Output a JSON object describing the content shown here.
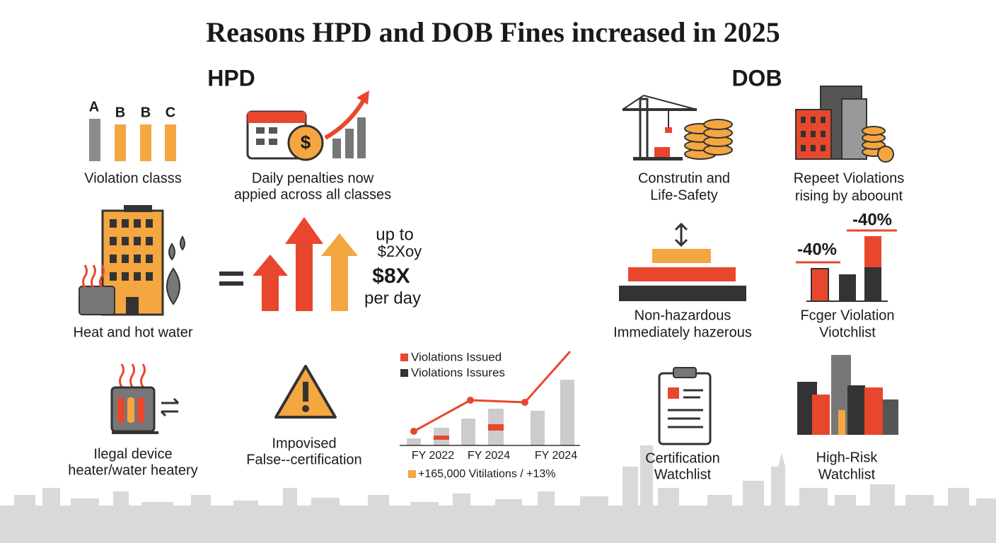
{
  "title": "Reasons HPD and DOB Fines increased in 2025",
  "hpd": {
    "heading": "HPD",
    "violation_class": {
      "letters": [
        "A",
        "B",
        "B",
        "C"
      ],
      "label": "Violation classs"
    },
    "daily_penalties": {
      "lines": [
        "Daily penalties now",
        "appied across all classes"
      ]
    },
    "heat": {
      "label": "Heat and hot water"
    },
    "multiplier": {
      "lines": [
        "up to",
        "$2Xoy",
        "$8X",
        "per day"
      ]
    },
    "illegal_device": {
      "lines": [
        "Ilegal device",
        "heater/water heatery"
      ]
    },
    "false_certification": {
      "lines": [
        "Impovised",
        "False--certification"
      ]
    },
    "trend": {
      "legend": [
        "Violations Issued",
        "Violations Issures"
      ],
      "x_labels": [
        "FY 2022",
        "FY 2024",
        "FY 2024"
      ],
      "footnote": "+165,000 Vitilations / +13%"
    }
  },
  "dob": {
    "heading": "DOB",
    "construction": {
      "lines": [
        "Construtin and",
        "Life-Safety"
      ]
    },
    "repeat": {
      "lines": [
        "Repeet Violations",
        "rising by aboount"
      ]
    },
    "hazard": {
      "lines": [
        "Non-hazardous",
        "Immediately hazerous"
      ]
    },
    "bar_labels": [
      "-40%",
      "-40%"
    ],
    "violation_watchlist": {
      "lines": [
        "Fcger Violation",
        "Viotchlist"
      ]
    },
    "certification": {
      "lines": [
        "Certification",
        "Watchlist"
      ]
    },
    "high_risk": {
      "lines": [
        "High-Risk",
        "Watchlist"
      ]
    }
  }
}
